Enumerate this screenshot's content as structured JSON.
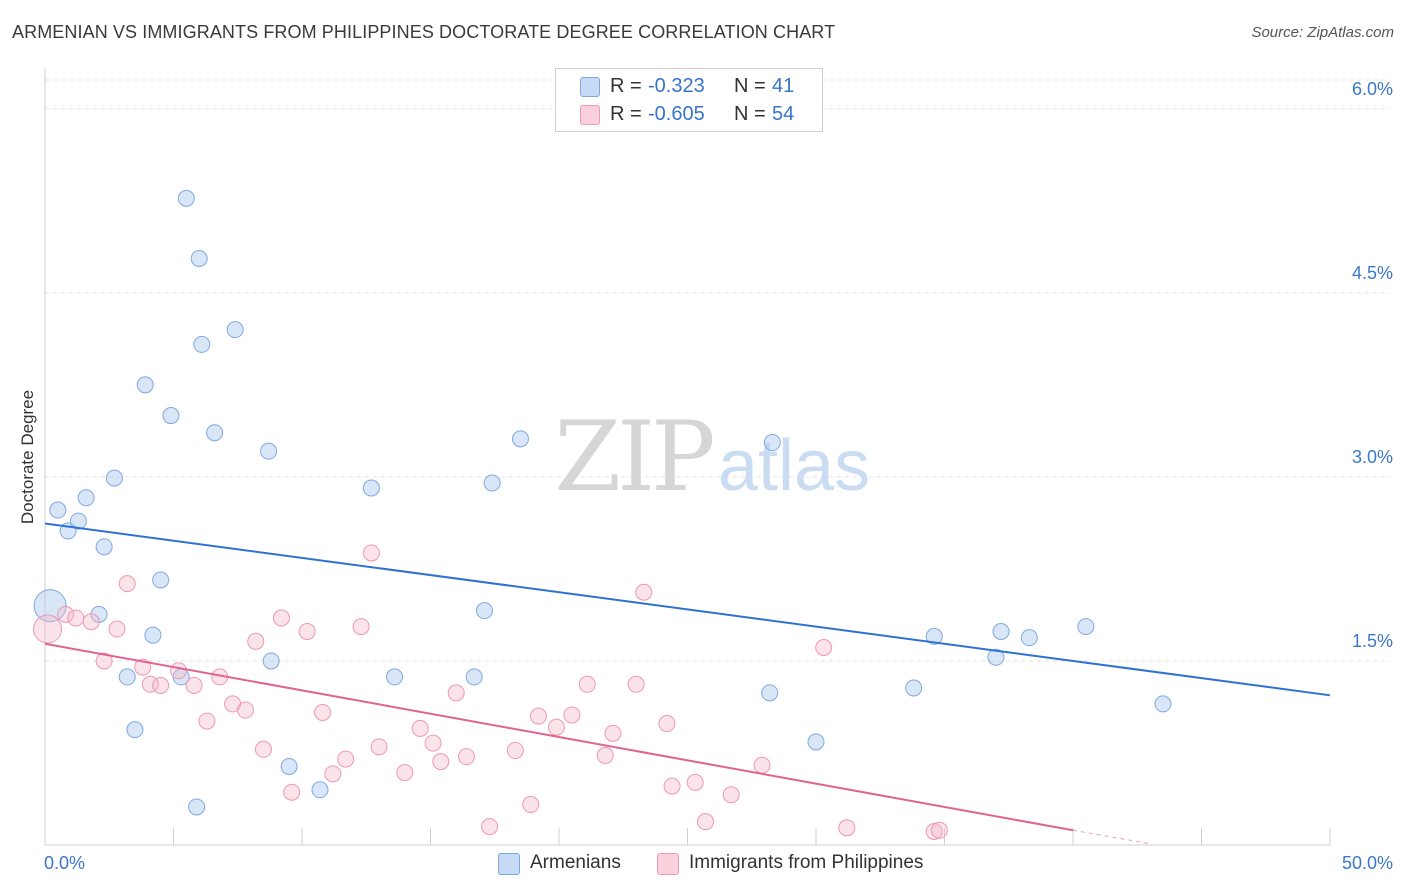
{
  "header": {
    "title": "ARMENIAN VS IMMIGRANTS FROM PHILIPPINES DOCTORATE DEGREE CORRELATION CHART",
    "source": "Source: ZipAtlas.com"
  },
  "watermark": {
    "zip": "ZIP",
    "atlas": "atlas"
  },
  "legend": {
    "rows": [
      {
        "r_label": "R =",
        "r_value": "-0.323",
        "n_label": "N =",
        "n_value": "41",
        "color": "#a9c8ef"
      },
      {
        "r_label": "R =",
        "r_value": "-0.605",
        "n_label": "N =",
        "n_value": "54",
        "color": "#f5b8ca"
      }
    ]
  },
  "bottom_legend": [
    {
      "label": "Armenians",
      "color": "#a9c8ef"
    },
    {
      "label": "Immigrants from Philippines",
      "color": "#f5b8ca"
    }
  ],
  "chart_data": {
    "type": "scatter",
    "title": "ARMENIAN VS IMMIGRANTS FROM PHILIPPINES DOCTORATE DEGREE CORRELATION CHART",
    "xlabel": "",
    "ylabel": "Doctorate Degree",
    "xlim": [
      0,
      50
    ],
    "ylim": [
      0,
      6.3
    ],
    "x_tick_labels": [
      "0.0%",
      "50.0%"
    ],
    "y_ticks": [
      1.5,
      3.0,
      4.5,
      6.0
    ],
    "y_tick_labels": [
      "1.5%",
      "3.0%",
      "4.5%",
      "6.0%"
    ],
    "grid": "horizontal dashed",
    "legend_position": "top-center",
    "series": [
      {
        "name": "Armenians",
        "color": "#4a86d6",
        "fill": "#a9c8ef",
        "trend": {
          "x": [
            0,
            50
          ],
          "y": [
            2.62,
            1.22
          ]
        },
        "points": [
          [
            0.2,
            1.95
          ],
          [
            0.5,
            2.73
          ],
          [
            0.9,
            2.56
          ],
          [
            1.3,
            2.64
          ],
          [
            1.6,
            2.83
          ],
          [
            2.1,
            1.88
          ],
          [
            2.3,
            2.43
          ],
          [
            2.7,
            2.99
          ],
          [
            3.2,
            1.37
          ],
          [
            3.5,
            0.94
          ],
          [
            3.9,
            3.75
          ],
          [
            4.2,
            1.71
          ],
          [
            4.5,
            2.16
          ],
          [
            4.9,
            3.5
          ],
          [
            5.3,
            1.37
          ],
          [
            5.5,
            5.27
          ],
          [
            5.9,
            0.31
          ],
          [
            6.0,
            4.78
          ],
          [
            6.1,
            4.08
          ],
          [
            6.6,
            3.36
          ],
          [
            7.4,
            4.2
          ],
          [
            8.7,
            3.21
          ],
          [
            8.8,
            1.5
          ],
          [
            9.5,
            0.64
          ],
          [
            10.7,
            0.45
          ],
          [
            12.7,
            2.91
          ],
          [
            13.6,
            1.37
          ],
          [
            16.7,
            1.37
          ],
          [
            17.1,
            1.91
          ],
          [
            17.4,
            2.95
          ],
          [
            18.5,
            3.31
          ],
          [
            28.2,
            1.24
          ],
          [
            28.3,
            3.28
          ],
          [
            30.0,
            0.84
          ],
          [
            33.8,
            1.28
          ],
          [
            34.6,
            1.7
          ],
          [
            37.0,
            1.53
          ],
          [
            37.2,
            1.74
          ],
          [
            38.3,
            1.69
          ],
          [
            40.5,
            1.78
          ],
          [
            43.5,
            1.15
          ]
        ]
      },
      {
        "name": "Immigrants from Philippines",
        "color": "#e56a96",
        "fill": "#f5b8ca",
        "trend": {
          "x": [
            0,
            40
          ],
          "y": [
            1.64,
            0.12
          ]
        },
        "trend_ext": {
          "x": [
            40,
            43
          ],
          "y": [
            0.12,
            0.01
          ]
        },
        "points": [
          [
            0.1,
            1.76
          ],
          [
            0.8,
            1.88
          ],
          [
            1.2,
            1.85
          ],
          [
            1.8,
            1.82
          ],
          [
            2.3,
            1.5
          ],
          [
            2.8,
            1.76
          ],
          [
            3.2,
            2.13
          ],
          [
            3.8,
            1.45
          ],
          [
            4.1,
            1.31
          ],
          [
            4.5,
            1.3
          ],
          [
            5.2,
            1.42
          ],
          [
            5.8,
            1.3
          ],
          [
            6.3,
            1.01
          ],
          [
            6.8,
            1.37
          ],
          [
            7.3,
            1.15
          ],
          [
            7.8,
            1.1
          ],
          [
            8.2,
            1.66
          ],
          [
            8.5,
            0.78
          ],
          [
            9.2,
            1.85
          ],
          [
            9.6,
            0.43
          ],
          [
            10.2,
            1.74
          ],
          [
            10.8,
            1.08
          ],
          [
            11.2,
            0.58
          ],
          [
            11.7,
            0.7
          ],
          [
            12.3,
            1.78
          ],
          [
            12.7,
            2.38
          ],
          [
            13.0,
            0.8
          ],
          [
            14.0,
            0.59
          ],
          [
            14.6,
            0.95
          ],
          [
            15.1,
            0.83
          ],
          [
            15.4,
            0.68
          ],
          [
            16.0,
            1.24
          ],
          [
            16.4,
            0.72
          ],
          [
            17.3,
            0.15
          ],
          [
            18.3,
            0.77
          ],
          [
            18.9,
            0.33
          ],
          [
            19.2,
            1.05
          ],
          [
            19.9,
            0.96
          ],
          [
            20.5,
            1.06
          ],
          [
            21.1,
            1.31
          ],
          [
            21.8,
            0.73
          ],
          [
            22.1,
            0.91
          ],
          [
            23.0,
            1.31
          ],
          [
            23.3,
            2.06
          ],
          [
            24.2,
            0.99
          ],
          [
            24.4,
            0.48
          ],
          [
            25.3,
            0.51
          ],
          [
            25.7,
            0.19
          ],
          [
            26.7,
            0.41
          ],
          [
            27.9,
            0.65
          ],
          [
            30.3,
            1.61
          ],
          [
            31.2,
            0.14
          ],
          [
            34.6,
            0.11
          ],
          [
            34.8,
            0.12
          ]
        ]
      }
    ]
  }
}
